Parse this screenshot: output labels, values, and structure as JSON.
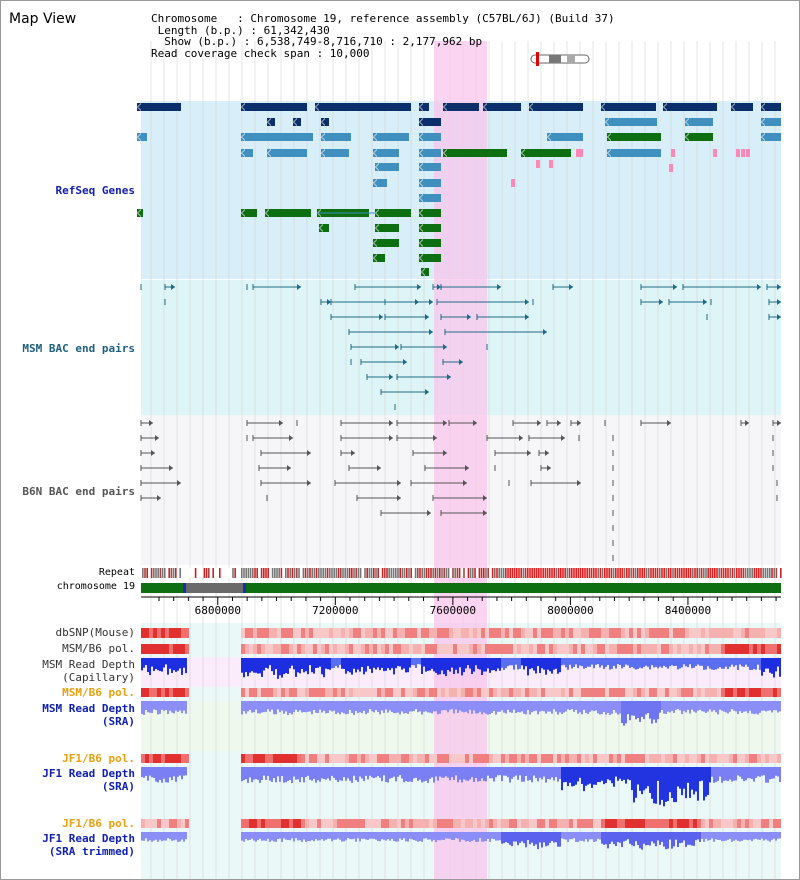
{
  "view_title": "Map View",
  "header": {
    "lines": [
      "Chromosome   : Chromosome 19, reference assembly (C57BL/6J) (Build 37)",
      " Length (b.p.) : 61,342,430",
      "  Show (b.p.) : 6,538,749-8,716,710 : 2,177,962 bp",
      "Read coverage check span : 10,000"
    ]
  },
  "tracks": {
    "refseq": "RefSeq Genes",
    "msm_bac": "MSM BAC end pairs",
    "b6n_bac": "B6N BAC end pairs",
    "repeat": "Repeat",
    "chromosome": "chromosome 19",
    "dbsnp": "dbSNP(Mouse)",
    "msm_b6_pol_1": "MSM/B6 pol.",
    "msm_depth_cap_1": "MSM Read Depth",
    "msm_depth_cap_2": "(Capillary)",
    "msm_b6_pol_2": "MSM/B6 pol.",
    "msm_depth_sra_1": "MSM Read Depth",
    "msm_depth_sra_2": "(SRA)",
    "jf1_b6_pol_1": "JF1/B6 pol.",
    "jf1_depth_sra_1": "JF1 Read Depth",
    "jf1_depth_sra_2": "(SRA)",
    "jf1_b6_pol_2": "JF1/B6 pol.",
    "jf1_depth_trim_1": "JF1 Read Depth",
    "jf1_depth_trim_2": "(SRA trimmed)"
  },
  "axis": {
    "ticks": [
      "6800000",
      "7200000",
      "7600000",
      "8000000",
      "8400000"
    ],
    "tick_values": [
      6800000,
      7200000,
      7600000,
      8000000,
      8400000
    ],
    "range": [
      6538749,
      8716710
    ]
  },
  "colors": {
    "refseq_dark": "#0a2f6b",
    "refseq_mid": "#3f8fbf",
    "refseq_green": "#0e6e12",
    "msm_bac": "#1d6a86",
    "b6n_bac": "#555555",
    "highlight": "#f8c6ec",
    "chromosome_band": "#0e6e12",
    "refseq_bg": "#d8eef8",
    "msm_bg": "#def5f7",
    "b6n_bg": "#f4f4f6",
    "label_blue": "#1020b0",
    "label_teal": "#1f5f80",
    "label_gray": "#555555",
    "label_orange": "#e8a010"
  }
}
